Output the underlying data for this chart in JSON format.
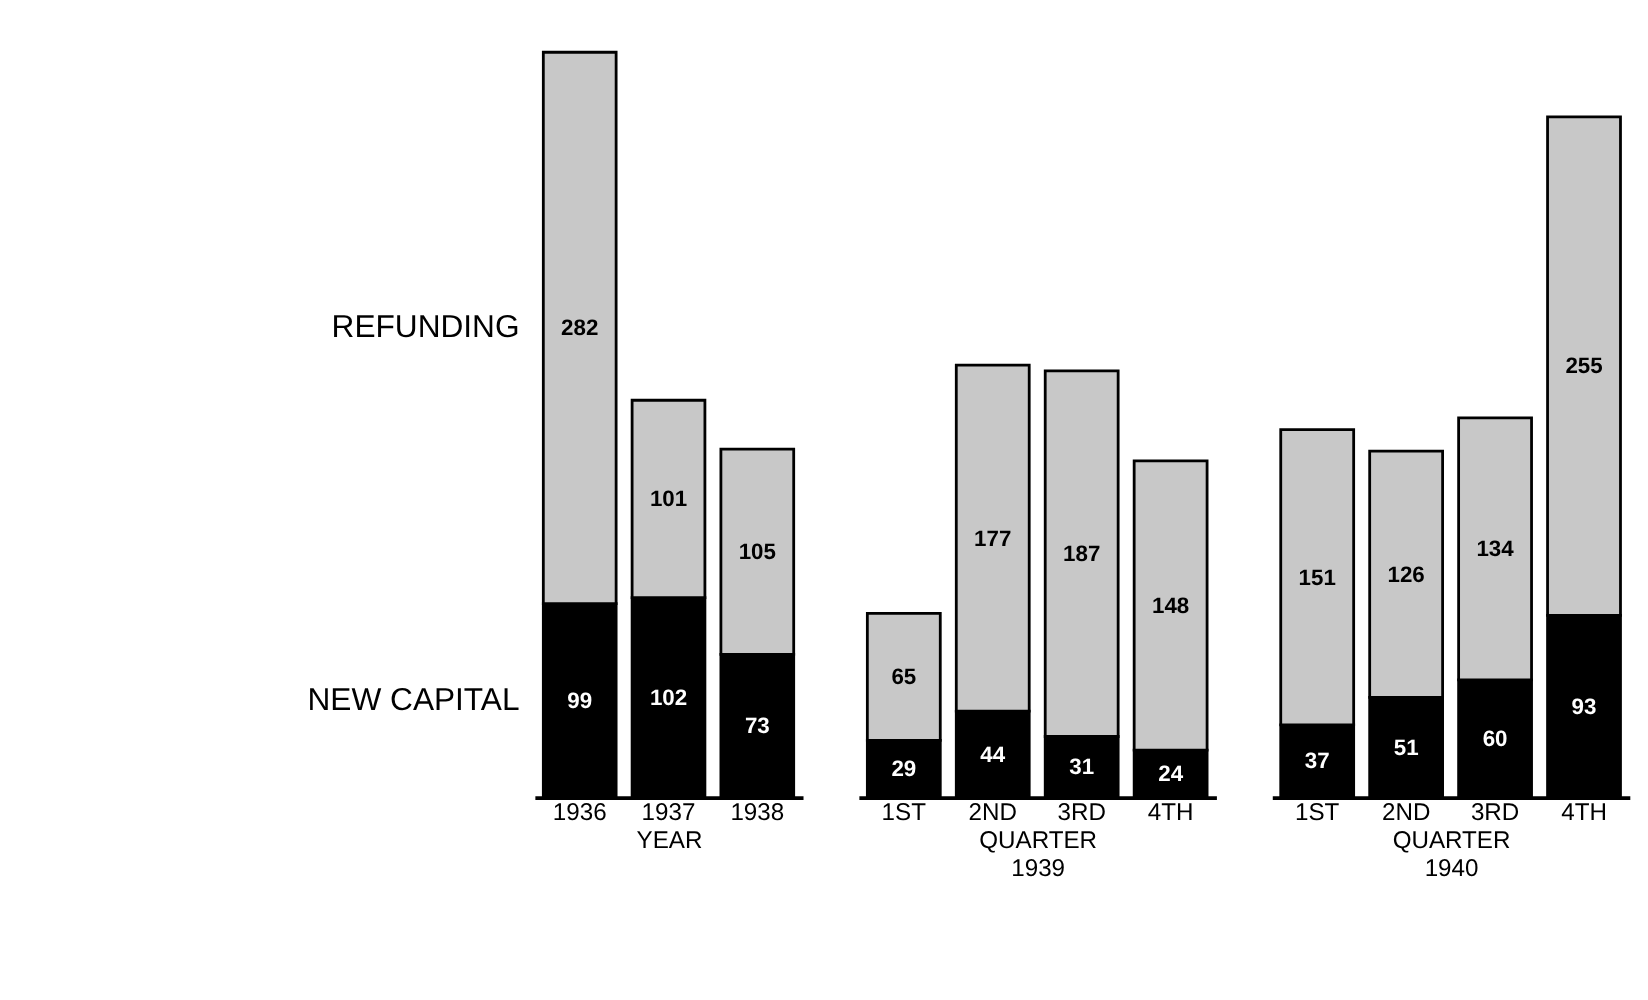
{
  "chart_data": [
    {
      "type": "bar",
      "stacked": true,
      "data_labels": true,
      "xlabel": "YEAR",
      "categories": [
        "1936",
        "1937",
        "1938"
      ],
      "series": [
        {
          "name": "NEW CAPITAL",
          "color": "#000000",
          "values": [
            99,
            102,
            73
          ]
        },
        {
          "name": "REFUNDING",
          "color": "#c8c8c8",
          "values": [
            282,
            101,
            105
          ]
        }
      ]
    },
    {
      "type": "bar",
      "stacked": true,
      "data_labels": true,
      "xlabel": "QUARTER\n1939",
      "categories": [
        "1ST",
        "2ND",
        "3RD",
        "4TH"
      ],
      "series": [
        {
          "color": "#000000",
          "values": [
            29,
            44,
            31,
            24
          ]
        },
        {
          "color": "#c8c8c8",
          "values": [
            65,
            177,
            187,
            148
          ]
        }
      ]
    },
    {
      "type": "bar",
      "stacked": true,
      "data_labels": true,
      "xlabel": "QUARTER\n1940",
      "categories": [
        "1ST",
        "2ND",
        "3RD",
        "4TH"
      ],
      "series": [
        {
          "color": "#000000",
          "values": [
            37,
            51,
            60,
            93
          ]
        },
        {
          "color": "#c8c8c8",
          "values": [
            151,
            126,
            134,
            255
          ]
        }
      ]
    }
  ]
}
